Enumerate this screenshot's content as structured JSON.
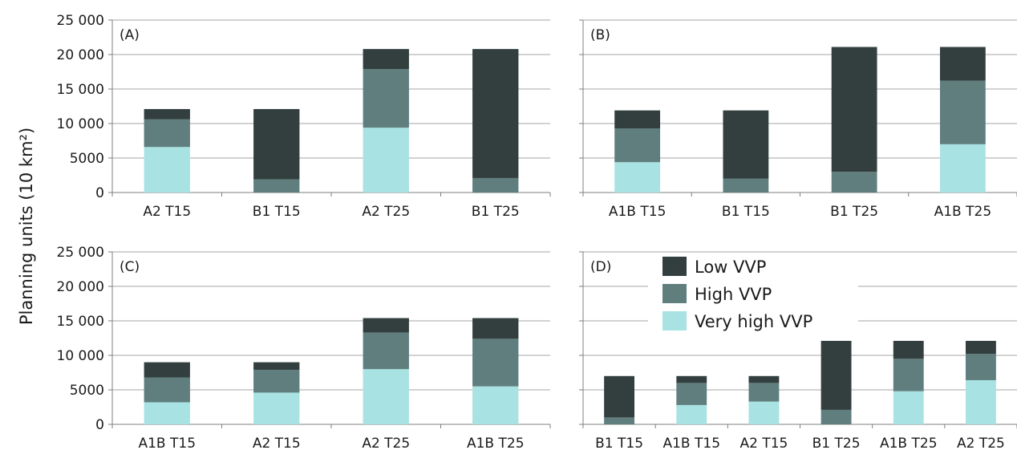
{
  "ylabel": "Planning units (10 km²)",
  "legend": {
    "placement": "inside panel D, top-left",
    "items": [
      {
        "name": "Low VVP",
        "color": "#333f3f"
      },
      {
        "name": "High VVP",
        "color": "#607e7e"
      },
      {
        "name": "Very high VVP",
        "color": "#a8e2e2"
      }
    ]
  },
  "chart_data": [
    {
      "type": "bar",
      "stacked": true,
      "panel_label": "(A)",
      "categories": [
        "A2 T15",
        "B1 T15",
        "A2 T25",
        "B1 T25"
      ],
      "series": [
        {
          "name": "Very high VVP",
          "color": "#a8e2e2",
          "values": [
            6600,
            0,
            9400,
            0
          ]
        },
        {
          "name": "High VVP",
          "color": "#607e7e",
          "values": [
            4000,
            1900,
            8500,
            2100
          ]
        },
        {
          "name": "Low VVP",
          "color": "#333f3f",
          "values": [
            1500,
            10200,
            2900,
            18700
          ]
        }
      ],
      "ylim": [
        0,
        25000
      ],
      "yticks": [
        0,
        5000,
        10000,
        15000,
        20000,
        25000
      ],
      "ytick_labels": [
        "0",
        "5000",
        "10 000",
        "15 000",
        "20 000",
        "25 000"
      ],
      "grid": true
    },
    {
      "type": "bar",
      "stacked": true,
      "panel_label": "(B)",
      "categories": [
        "A1B T15",
        "B1 T15",
        "B1 T25",
        "A1B T25"
      ],
      "series": [
        {
          "name": "Very high VVP",
          "color": "#a8e2e2",
          "values": [
            4400,
            0,
            0,
            7000
          ]
        },
        {
          "name": "High VVP",
          "color": "#607e7e",
          "values": [
            4900,
            2000,
            3000,
            9200
          ]
        },
        {
          "name": "Low VVP",
          "color": "#333f3f",
          "values": [
            2600,
            9900,
            18100,
            4900
          ]
        }
      ],
      "ylim": [
        0,
        25000
      ],
      "yticks": [
        0,
        5000,
        10000,
        15000,
        20000,
        25000
      ],
      "grid": true
    },
    {
      "type": "bar",
      "stacked": true,
      "panel_label": "(C)",
      "categories": [
        "A1B T15",
        "A2 T15",
        "A2 T25",
        "A1B T25"
      ],
      "series": [
        {
          "name": "Very high VVP",
          "color": "#a8e2e2",
          "values": [
            3200,
            4600,
            8000,
            5500
          ]
        },
        {
          "name": "High VVP",
          "color": "#607e7e",
          "values": [
            3600,
            3300,
            5300,
            6900
          ]
        },
        {
          "name": "Low VVP",
          "color": "#333f3f",
          "values": [
            2200,
            1100,
            2100,
            3000
          ]
        }
      ],
      "ylim": [
        0,
        25000
      ],
      "yticks": [
        0,
        5000,
        10000,
        15000,
        20000,
        25000
      ],
      "ytick_labels": [
        "0",
        "5000",
        "10 000",
        "15 000",
        "20 000",
        "25 000"
      ],
      "grid": true
    },
    {
      "type": "bar",
      "stacked": true,
      "panel_label": "(D)",
      "categories": [
        "B1 T15",
        "A1B T15",
        "A2 T15",
        "B1 T25",
        "A1B T25",
        "A2 T25"
      ],
      "series": [
        {
          "name": "Very high VVP",
          "color": "#a8e2e2",
          "values": [
            0,
            2800,
            3300,
            0,
            4800,
            6400
          ]
        },
        {
          "name": "High VVP",
          "color": "#607e7e",
          "values": [
            1000,
            3200,
            2700,
            2100,
            4700,
            3800
          ]
        },
        {
          "name": "Low VVP",
          "color": "#333f3f",
          "values": [
            6000,
            1000,
            1000,
            10000,
            2600,
            1900
          ]
        }
      ],
      "ylim": [
        0,
        25000
      ],
      "yticks": [
        0,
        5000,
        10000,
        15000,
        20000,
        25000
      ],
      "grid": true
    }
  ]
}
